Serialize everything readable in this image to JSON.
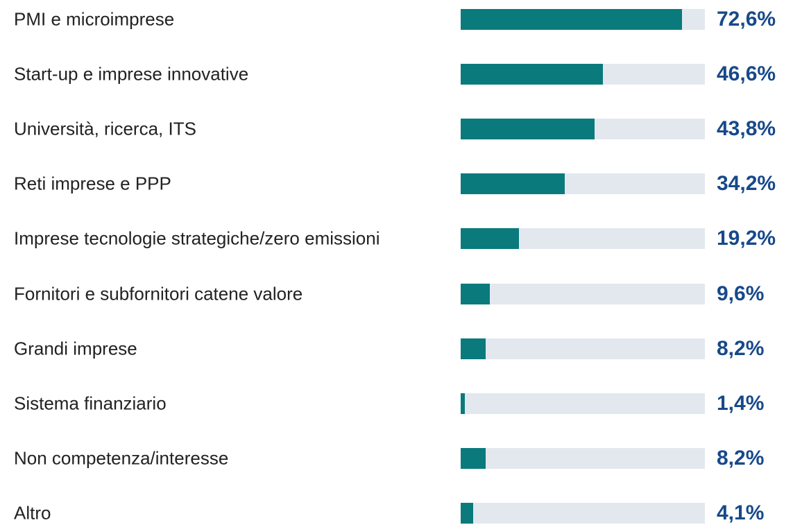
{
  "chart_data": {
    "type": "barh",
    "categories": [
      "PMI e microimprese",
      "Start-up e imprese innovative",
      "Università, ricerca, ITS",
      "Reti imprese e PPP",
      "Imprese tecnologie strategiche/zero emissioni",
      "Fornitori e subfornitori catene valore",
      "Grandi imprese",
      "Sistema finanziario",
      "Non competenza/interesse",
      "Altro"
    ],
    "values": [
      72.6,
      46.6,
      43.8,
      34.2,
      19.2,
      9.6,
      8.2,
      1.4,
      8.2,
      4.1
    ],
    "value_labels": [
      "72,6%",
      "46,6%",
      "43,8%",
      "34,2%",
      "19,2%",
      "9,6%",
      "8,2%",
      "1,4%",
      "8,2%",
      "4,1%"
    ],
    "color": "#0a7a7c",
    "xlim": [
      0,
      80
    ]
  }
}
